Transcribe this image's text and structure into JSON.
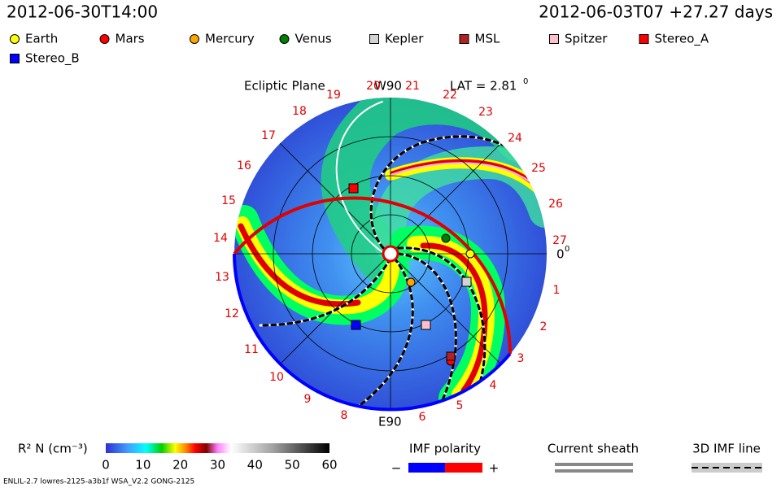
{
  "header": {
    "left": "2012-06-30T14:00",
    "right": "2012-06-03T07 +27.27 days"
  },
  "legend": [
    {
      "name": "Earth",
      "color": "#ffff00",
      "marker": "circle"
    },
    {
      "name": "Mars",
      "color": "#ff0000",
      "marker": "circle"
    },
    {
      "name": "Mercury",
      "color": "#ffa500",
      "marker": "circle"
    },
    {
      "name": "Venus",
      "color": "#008000",
      "marker": "circle"
    },
    {
      "name": "Kepler",
      "color": "#d3d3d3",
      "marker": "square"
    },
    {
      "name": "MSL",
      "color": "#b22222",
      "marker": "square"
    },
    {
      "name": "Spitzer",
      "color": "#ffc0cb",
      "marker": "square"
    },
    {
      "name": "Stereo_A",
      "color": "#ff0000",
      "marker": "square"
    },
    {
      "name": "Stereo_B",
      "color": "#0000ff",
      "marker": "square"
    }
  ],
  "plot": {
    "title": "Ecliptic Plane",
    "top_label": "W90",
    "lat": "LAT = 2.81",
    "lat_unit": "0",
    "zero_label": "0",
    "zero_unit": "0",
    "bottom_label": "E90",
    "rim_labels": [
      "1",
      "2",
      "3",
      "4",
      "5",
      "6",
      "8",
      "9",
      "10",
      "11",
      "12",
      "13",
      "14",
      "15",
      "16",
      "17",
      "18",
      "19",
      "20",
      "21",
      "22",
      "23",
      "24",
      "25",
      "26",
      "27"
    ]
  },
  "colorbar": {
    "label": "R² N (cm⁻³)",
    "ticks": [
      0,
      10,
      20,
      30,
      40,
      50,
      60
    ]
  },
  "imf": {
    "title": "IMF polarity",
    "minus": "−",
    "plus": "+"
  },
  "sheath": {
    "title": "Current sheath"
  },
  "imf_line": {
    "title": "3D IMF line"
  },
  "footer": "ENLIL-2.7 lowres-2125-a3b1f WSA_V2.2 GONG-2125"
}
